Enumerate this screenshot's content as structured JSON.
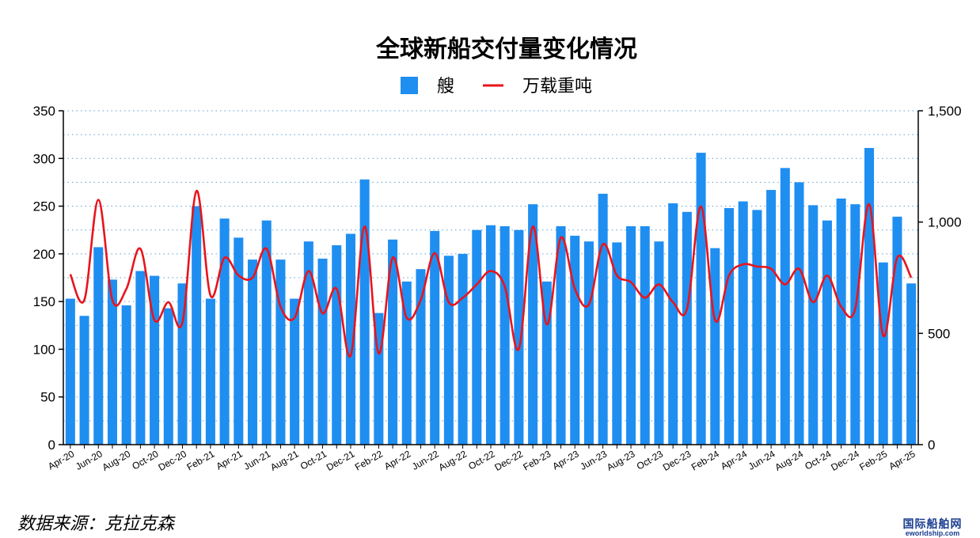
{
  "chart_data": {
    "type": "bar",
    "title": "全球新船交付量变化情况",
    "legend": {
      "position": "top-center"
    },
    "grid": {
      "horizontal": true,
      "style": "dotted"
    },
    "y_left": {
      "range": [
        0,
        350
      ],
      "ticks": [
        "0",
        "50",
        "100",
        "150",
        "200",
        "250",
        "300",
        "350"
      ]
    },
    "y_right": {
      "range": [
        0,
        1500
      ],
      "ticks": [
        "0",
        "500",
        "1,000",
        "1,500"
      ]
    },
    "categories": [
      "Apr-20",
      "May-20",
      "Jun-20",
      "Jul-20",
      "Aug-20",
      "Sep-20",
      "Oct-20",
      "Nov-20",
      "Dec-20",
      "Jan-21",
      "Feb-21",
      "Mar-21",
      "Apr-21",
      "May-21",
      "Jun-21",
      "Jul-21",
      "Aug-21",
      "Sep-21",
      "Oct-21",
      "Nov-21",
      "Dec-21",
      "Jan-22",
      "Feb-22",
      "Mar-22",
      "Apr-22",
      "May-22",
      "Jun-22",
      "Jul-22",
      "Aug-22",
      "Sep-22",
      "Oct-22",
      "Nov-22",
      "Dec-22",
      "Jan-23",
      "Feb-23",
      "Mar-23",
      "Apr-23",
      "May-23",
      "Jun-23",
      "Jul-23",
      "Aug-23",
      "Sep-23",
      "Oct-23",
      "Nov-23",
      "Dec-23",
      "Jan-24",
      "Feb-24",
      "Mar-24",
      "Apr-24",
      "May-24",
      "Jun-24",
      "Jul-24",
      "Aug-24",
      "Sep-24",
      "Oct-24",
      "Nov-24",
      "Dec-24",
      "Jan-25",
      "Feb-25",
      "Mar-25",
      "Apr-25"
    ],
    "x_tick_labels": [
      "Apr-20",
      "Jun-20",
      "Aug-20",
      "Oct-20",
      "Dec-20",
      "Feb-21",
      "Apr-21",
      "Jun-21",
      "Aug-21",
      "Oct-21",
      "Dec-21",
      "Feb-22",
      "Apr-22",
      "Jun-22",
      "Aug-22",
      "Oct-22",
      "Dec-22",
      "Feb-23",
      "Apr-23",
      "Jun-23",
      "Aug-23",
      "Oct-23",
      "Dec-23",
      "Feb-24",
      "Apr-24",
      "Jun-24",
      "Aug-24",
      "Oct-24",
      "Dec-24",
      "Feb-25",
      "Apr-25"
    ],
    "series": [
      {
        "name": "艘",
        "type": "bar",
        "axis": "left",
        "color": "#1f8ef1",
        "values": [
          153,
          135,
          207,
          173,
          146,
          182,
          177,
          143,
          169,
          250,
          153,
          237,
          217,
          194,
          235,
          194,
          153,
          213,
          195,
          209,
          221,
          278,
          138,
          215,
          171,
          184,
          224,
          198,
          200,
          225,
          230,
          229,
          225,
          252,
          171,
          229,
          219,
          213,
          263,
          212,
          229,
          229,
          213,
          253,
          244,
          306,
          206,
          248,
          255,
          246,
          267,
          290,
          275,
          251,
          235,
          258,
          252,
          311,
          191,
          239,
          169
        ]
      },
      {
        "name": "万载重吨",
        "type": "line",
        "axis": "right",
        "color": "#e8141c",
        "values": [
          765,
          650,
          1100,
          650,
          700,
          880,
          560,
          640,
          550,
          1140,
          670,
          840,
          760,
          750,
          880,
          620,
          570,
          780,
          590,
          700,
          400,
          980,
          410,
          840,
          570,
          650,
          860,
          640,
          660,
          720,
          780,
          710,
          430,
          980,
          540,
          930,
          700,
          630,
          900,
          760,
          730,
          660,
          720,
          640,
          610,
          1070,
          560,
          760,
          810,
          800,
          790,
          720,
          790,
          640,
          760,
          620,
          610,
          1080,
          490,
          840,
          750
        ]
      }
    ]
  },
  "footer": {
    "source": "数据来源：克拉克森"
  },
  "watermark": {
    "main": "国际船舶网",
    "sub": "eworldship.com"
  }
}
